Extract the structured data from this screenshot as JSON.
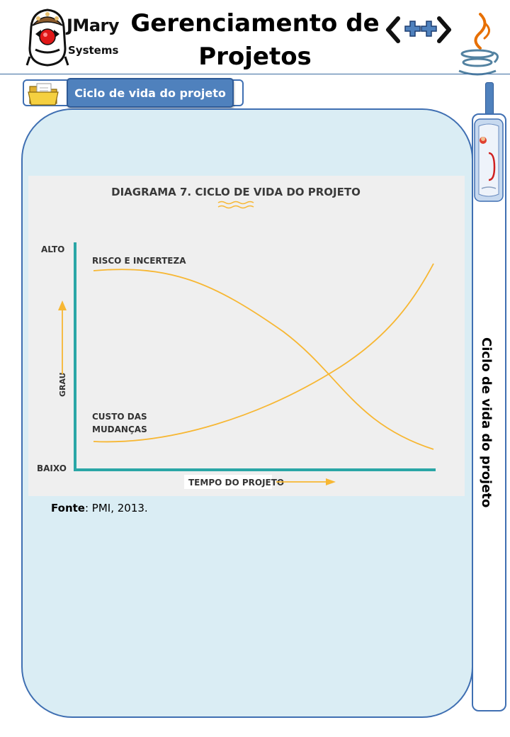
{
  "header": {
    "logo": {
      "name": "JMary",
      "subtitle": "Systems"
    },
    "title": "Gerenciamento de Projetos",
    "cpp_logo": "<++>"
  },
  "section": {
    "label": "Ciclo de vida do projeto"
  },
  "side_tab": {
    "label": "Ciclo de vida do projeto"
  },
  "diagram": {
    "title": "DIAGRAMA 7. CICLO DE VIDA DO PROJETO",
    "y_top_label": "ALTO",
    "y_bottom_label": "BAIXO",
    "y_axis_label": "GRAU",
    "x_axis_label": "TEMPO DO PROJETO",
    "curve_labels": {
      "risk": "RISCO E INCERTEZA",
      "cost_line1": "CUSTO DAS",
      "cost_line2": "MUDANÇAS"
    },
    "colors": {
      "axis": "#2aa6a6",
      "curve": "#f7b733",
      "arrow": "#f7b733",
      "background": "#efefef"
    }
  },
  "source": {
    "label": "Fonte",
    "text": ": PMI, 2013."
  },
  "colors": {
    "accent": "#4f81bd",
    "panel": "#daedf4",
    "border": "#3f6fb2"
  },
  "icons": [
    "jmary-mascot-icon",
    "cpp-logo-icon",
    "java-logo-icon",
    "folder-icon",
    "document-icon"
  ]
}
